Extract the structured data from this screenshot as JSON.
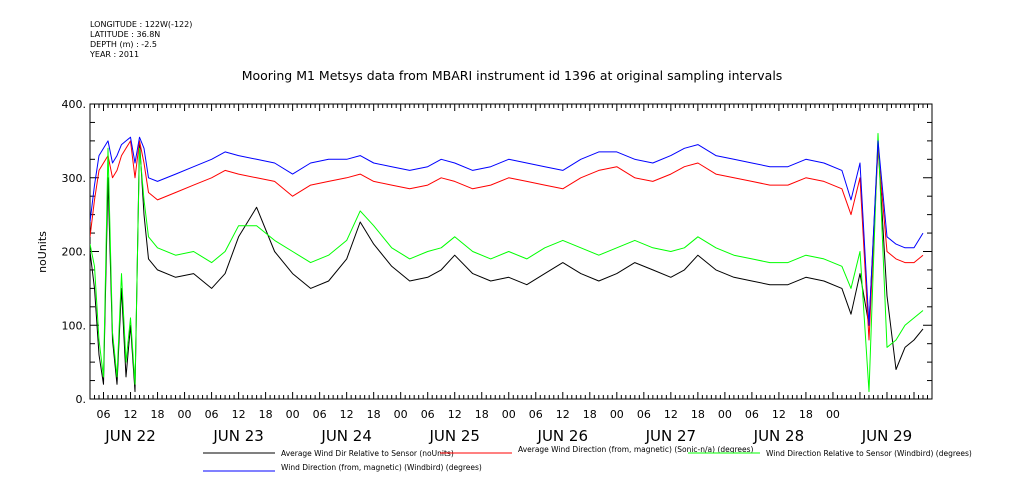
{
  "header": {
    "longitude": "LONGITUDE : 122W(-122)",
    "latitude": "LATITUDE : 36.8N",
    "depth": "DEPTH (m) : -2.5",
    "year": "YEAR : 2011"
  },
  "chart_data": {
    "type": "line",
    "title": "Mooring M1 Metsys data from MBARI instrument id 1396 at original sampling intervals",
    "xlabel": "",
    "ylabel": "noUnits",
    "ylim": [
      0,
      400
    ],
    "yticks": [
      "0.",
      "100.",
      "200.",
      "300.",
      "400."
    ],
    "xlim": [
      3,
      190
    ],
    "hour_ticks": [
      "06",
      "12",
      "18",
      "00",
      "06",
      "12",
      "18",
      "00",
      "06",
      "12",
      "18",
      "00",
      "06",
      "12",
      "18",
      "00",
      "06",
      "12",
      "18",
      "00",
      "06",
      "12",
      "18",
      "00",
      "06",
      "12",
      "18",
      "00"
    ],
    "day_labels": [
      "JUN 22",
      "JUN 23",
      "JUN 24",
      "JUN 25",
      "JUN 26",
      "JUN 27",
      "JUN 28",
      "JUN 29"
    ],
    "grid": false,
    "legend_position": "bottom",
    "series": [
      {
        "name": "Average Wind Dir Relative to Sensor (noUnits)",
        "color": "#000000",
        "x": [
          3,
          4,
          5,
          6,
          7,
          8,
          9,
          10,
          11,
          12,
          13,
          14,
          15,
          16,
          18,
          22,
          26,
          30,
          33,
          36,
          40,
          44,
          48,
          52,
          56,
          60,
          63,
          66,
          70,
          74,
          78,
          81,
          84,
          88,
          92,
          96,
          100,
          104,
          108,
          112,
          116,
          120,
          124,
          128,
          132,
          135,
          138,
          142,
          146,
          150,
          154,
          158,
          162,
          166,
          170,
          172,
          174,
          176,
          178,
          180,
          182,
          184,
          186,
          188
        ],
        "y": [
          200,
          150,
          60,
          20,
          300,
          80,
          20,
          150,
          30,
          100,
          10,
          350,
          250,
          190,
          175,
          165,
          170,
          150,
          170,
          220,
          260,
          200,
          170,
          150,
          160,
          190,
          240,
          210,
          180,
          160,
          165,
          175,
          195,
          170,
          160,
          165,
          155,
          170,
          185,
          170,
          160,
          170,
          185,
          175,
          165,
          175,
          195,
          175,
          165,
          160,
          155,
          155,
          165,
          160,
          150,
          115,
          170,
          100,
          345,
          140,
          40,
          70,
          80,
          95
        ]
      },
      {
        "name": "Average Wind Direction (from, magnetic) (Sonic-n/a) (degrees)",
        "color": "#ff0000",
        "x": [
          3,
          4,
          5,
          6,
          7,
          8,
          9,
          10,
          11,
          12,
          13,
          14,
          15,
          16,
          18,
          22,
          26,
          30,
          33,
          36,
          40,
          44,
          48,
          52,
          56,
          60,
          63,
          66,
          70,
          74,
          78,
          81,
          84,
          88,
          92,
          96,
          100,
          104,
          108,
          112,
          116,
          120,
          124,
          128,
          132,
          135,
          138,
          142,
          146,
          150,
          154,
          158,
          162,
          166,
          170,
          172,
          174,
          176,
          178,
          180,
          182,
          184,
          186,
          188
        ],
        "y": [
          220,
          270,
          310,
          320,
          330,
          300,
          310,
          330,
          340,
          350,
          300,
          350,
          320,
          280,
          270,
          280,
          290,
          300,
          310,
          305,
          300,
          295,
          275,
          290,
          295,
          300,
          305,
          295,
          290,
          285,
          290,
          300,
          295,
          285,
          290,
          300,
          295,
          290,
          285,
          300,
          310,
          315,
          300,
          295,
          305,
          315,
          320,
          305,
          300,
          295,
          290,
          290,
          300,
          295,
          285,
          250,
          300,
          80,
          340,
          200,
          190,
          185,
          185,
          195
        ]
      },
      {
        "name": "Wind Direction Relative to Sensor (Windbird) (degrees)",
        "color": "#00ff00",
        "x": [
          3,
          4,
          5,
          6,
          7,
          8,
          9,
          10,
          11,
          12,
          13,
          14,
          15,
          16,
          18,
          22,
          26,
          30,
          33,
          36,
          40,
          44,
          48,
          52,
          56,
          60,
          63,
          66,
          70,
          74,
          78,
          81,
          84,
          88,
          92,
          96,
          100,
          104,
          108,
          112,
          116,
          120,
          124,
          128,
          132,
          135,
          138,
          142,
          146,
          150,
          154,
          158,
          162,
          166,
          170,
          172,
          174,
          176,
          178,
          180,
          182,
          184,
          186,
          188
        ],
        "y": [
          210,
          180,
          80,
          30,
          340,
          90,
          30,
          170,
          50,
          110,
          20,
          340,
          270,
          220,
          205,
          195,
          200,
          185,
          200,
          235,
          235,
          215,
          200,
          185,
          195,
          215,
          255,
          235,
          205,
          190,
          200,
          205,
          220,
          200,
          190,
          200,
          190,
          205,
          215,
          205,
          195,
          205,
          215,
          205,
          200,
          205,
          220,
          205,
          195,
          190,
          185,
          185,
          195,
          190,
          180,
          150,
          200,
          10,
          360,
          70,
          80,
          100,
          110,
          120
        ]
      },
      {
        "name": "Wind Direction (from, magnetic) (Windbird) (degrees)",
        "color": "#0000ff",
        "x": [
          3,
          4,
          5,
          6,
          7,
          8,
          9,
          10,
          11,
          12,
          13,
          14,
          15,
          16,
          18,
          22,
          26,
          30,
          33,
          36,
          40,
          44,
          48,
          52,
          56,
          60,
          63,
          66,
          70,
          74,
          78,
          81,
          84,
          88,
          92,
          96,
          100,
          104,
          108,
          112,
          116,
          120,
          124,
          128,
          132,
          135,
          138,
          142,
          146,
          150,
          154,
          158,
          162,
          166,
          170,
          172,
          174,
          176,
          178,
          180,
          182,
          184,
          186,
          188
        ],
        "y": [
          240,
          290,
          330,
          340,
          350,
          320,
          330,
          345,
          350,
          355,
          320,
          355,
          340,
          300,
          295,
          305,
          315,
          325,
          335,
          330,
          325,
          320,
          305,
          320,
          325,
          325,
          330,
          320,
          315,
          310,
          315,
          325,
          320,
          310,
          315,
          325,
          320,
          315,
          310,
          325,
          335,
          335,
          325,
          320,
          330,
          340,
          345,
          330,
          325,
          320,
          315,
          315,
          325,
          320,
          310,
          270,
          320,
          100,
          350,
          220,
          210,
          205,
          205,
          225
        ]
      }
    ]
  }
}
